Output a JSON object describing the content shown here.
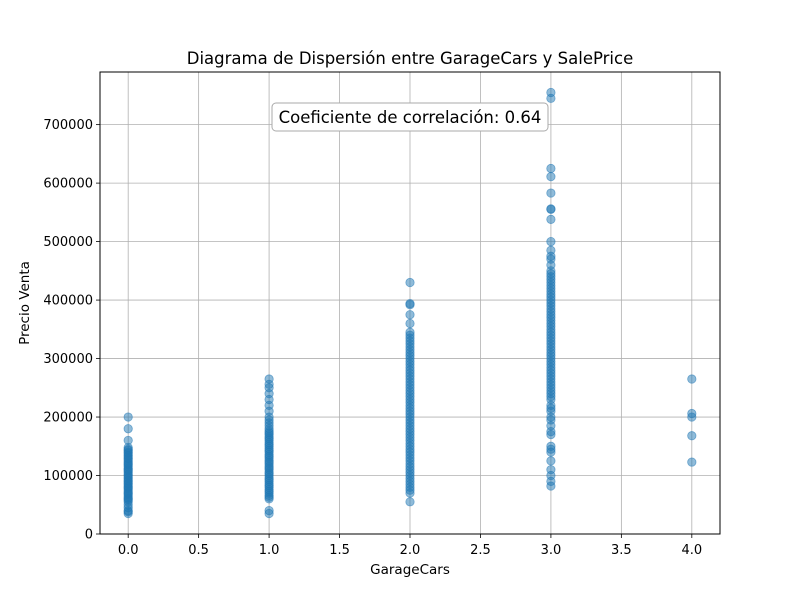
{
  "chart_data": {
    "type": "scatter",
    "title": "Diagrama de Dispersión entre GarageCars y SalePrice",
    "xlabel": "GarageCars",
    "ylabel": "Precio Venta",
    "xlim": [
      -0.2,
      4.2
    ],
    "ylim": [
      0,
      790000
    ],
    "xticks": [
      0.0,
      0.5,
      1.0,
      1.5,
      2.0,
      2.5,
      3.0,
      3.5,
      4.0
    ],
    "xtick_labels": [
      "0.0",
      "0.5",
      "1.0",
      "1.5",
      "2.0",
      "2.5",
      "3.0",
      "3.5",
      "4.0"
    ],
    "yticks": [
      0,
      100000,
      200000,
      300000,
      400000,
      500000,
      600000,
      700000
    ],
    "ytick_labels": [
      "0",
      "100000",
      "200000",
      "300000",
      "400000",
      "500000",
      "600000",
      "700000"
    ],
    "grid": true,
    "point_color": "#1f77b4",
    "annotation": "Coeficiente de correlación: 0.64",
    "series": [
      {
        "x": 0,
        "values": [
          35000,
          38000,
          40000,
          45000,
          50000,
          55000,
          58000,
          60000,
          62000,
          65000,
          68000,
          70000,
          72000,
          75000,
          78000,
          80000,
          82000,
          85000,
          87000,
          90000,
          92000,
          95000,
          97000,
          100000,
          102000,
          105000,
          108000,
          110000,
          112000,
          115000,
          118000,
          120000,
          122000,
          125000,
          128000,
          130000,
          133000,
          135000,
          138000,
          140000,
          143000,
          145000,
          148000,
          160000,
          180000,
          200000
        ]
      },
      {
        "x": 1,
        "values": [
          35000,
          40000,
          60000,
          63000,
          66000,
          70000,
          73000,
          76000,
          80000,
          83000,
          86000,
          90000,
          93000,
          96000,
          100000,
          103000,
          106000,
          110000,
          113000,
          116000,
          120000,
          123000,
          126000,
          130000,
          133000,
          136000,
          140000,
          143000,
          146000,
          150000,
          153000,
          156000,
          160000,
          163000,
          166000,
          170000,
          173000,
          176000,
          180000,
          185000,
          190000,
          195000,
          200000,
          210000,
          220000,
          230000,
          240000,
          250000,
          256000,
          265000
        ]
      },
      {
        "x": 2,
        "values": [
          55000,
          70000,
          75000,
          80000,
          85000,
          90000,
          95000,
          100000,
          105000,
          110000,
          115000,
          120000,
          125000,
          130000,
          135000,
          140000,
          145000,
          150000,
          155000,
          160000,
          165000,
          170000,
          175000,
          180000,
          185000,
          190000,
          195000,
          200000,
          205000,
          210000,
          215000,
          220000,
          225000,
          230000,
          235000,
          240000,
          245000,
          250000,
          255000,
          260000,
          265000,
          270000,
          275000,
          280000,
          285000,
          290000,
          295000,
          300000,
          305000,
          310000,
          315000,
          320000,
          325000,
          330000,
          335000,
          340000,
          345000,
          360000,
          375000,
          392000,
          394000,
          430000
        ]
      },
      {
        "x": 3,
        "values": [
          82000,
          90000,
          100000,
          110000,
          125000,
          140000,
          145000,
          150000,
          170000,
          175000,
          185000,
          195000,
          200000,
          210000,
          215000,
          220000,
          230000,
          235000,
          240000,
          245000,
          250000,
          255000,
          260000,
          265000,
          270000,
          275000,
          280000,
          285000,
          290000,
          295000,
          300000,
          305000,
          310000,
          315000,
          320000,
          325000,
          330000,
          335000,
          340000,
          345000,
          350000,
          355000,
          360000,
          365000,
          370000,
          375000,
          380000,
          385000,
          390000,
          395000,
          400000,
          405000,
          410000,
          415000,
          420000,
          425000,
          430000,
          435000,
          440000,
          445000,
          450000,
          460000,
          470000,
          475000,
          485000,
          500000,
          538000,
          555000,
          556000,
          583000,
          611000,
          625000,
          745000,
          755000
        ]
      },
      {
        "x": 4,
        "values": [
          123000,
          168000,
          200000,
          206000,
          265000
        ]
      }
    ]
  }
}
